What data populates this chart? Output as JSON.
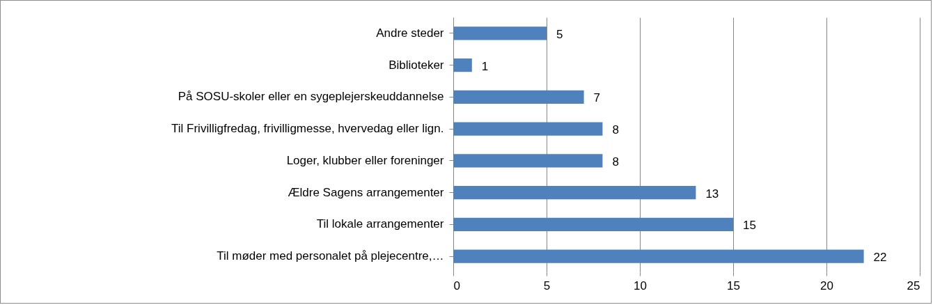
{
  "chart_data": {
    "type": "bar",
    "orientation": "horizontal",
    "categories": [
      "Andre steder",
      "Biblioteker",
      "På SOSU-skoler eller en sygeplejerskeuddannelse",
      "Til Frivilligfredag, frivilligmesse, hvervedag eller lign.",
      "Loger, klubber eller foreninger",
      "Ældre Sagens arrangementer ",
      "Til lokale arrangementer",
      "Til møder med personalet på plejecentre,…"
    ],
    "values": [
      5,
      1,
      7,
      8,
      8,
      13,
      15,
      22
    ],
    "color": "#4f81bd",
    "xlim": [
      0,
      25
    ],
    "xticks": [
      0,
      5,
      10,
      15,
      20,
      25
    ],
    "grid": "x",
    "data_labels": true
  }
}
